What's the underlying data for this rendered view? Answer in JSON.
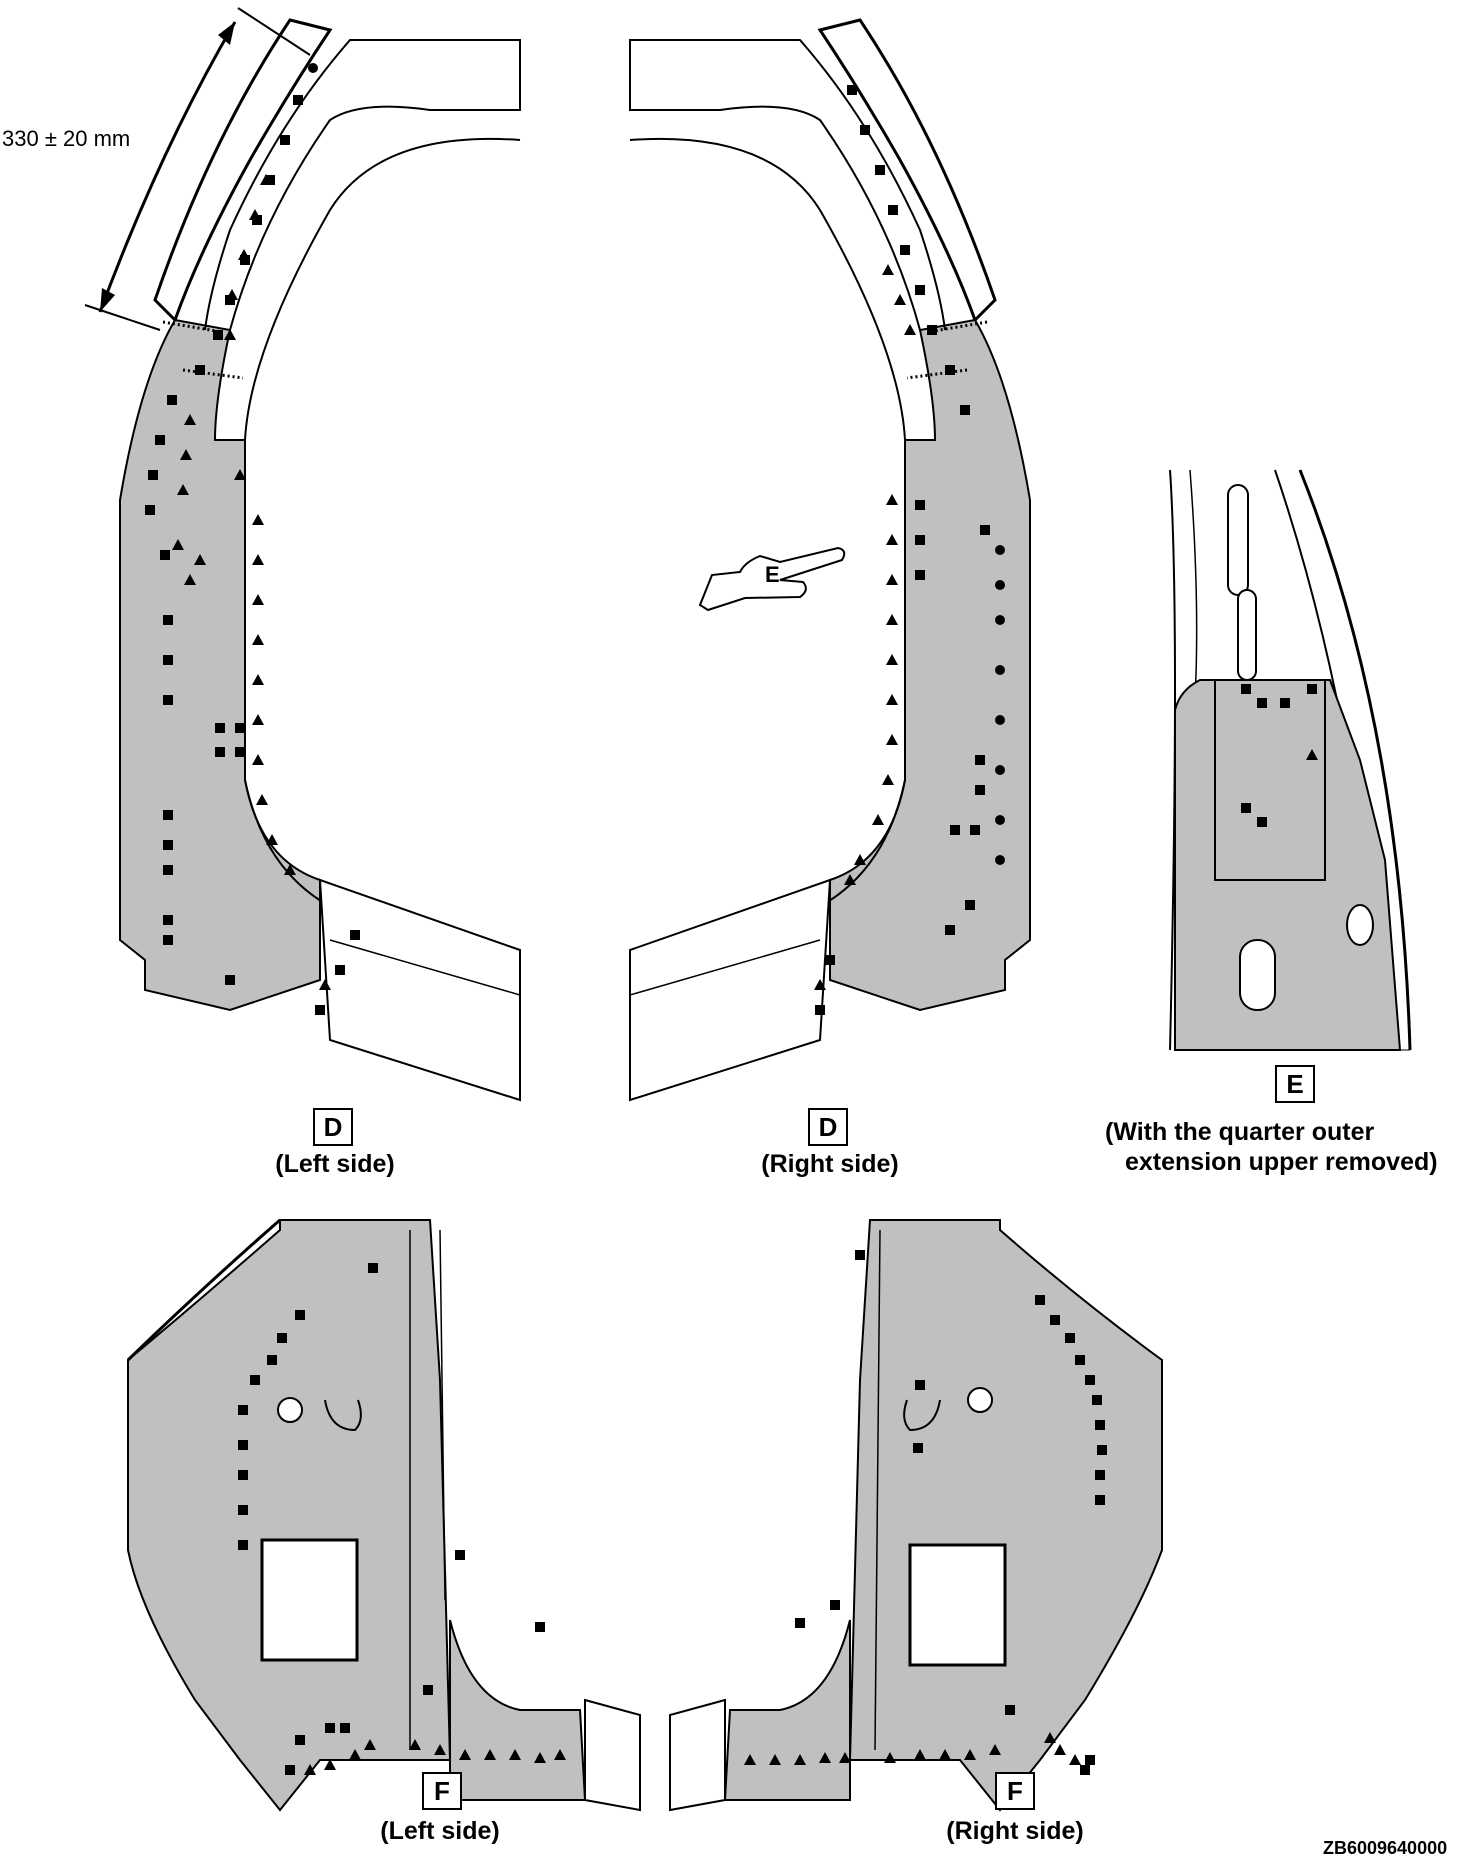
{
  "dimension_label": "330 ± 20 mm",
  "views": {
    "d_left": {
      "letter": "D",
      "caption": "(Left side)"
    },
    "d_right": {
      "letter": "D",
      "caption": "(Right side)"
    },
    "e_detail": {
      "letter": "E",
      "caption_line1": "(With the quarter outer",
      "caption_line2": "extension upper removed)"
    },
    "f_left": {
      "letter": "F",
      "caption": "(Left side)"
    },
    "f_right": {
      "letter": "F",
      "caption": "(Right side)"
    }
  },
  "pointer_hand_letter": "E",
  "figure_code": "ZB6009640000",
  "colors": {
    "panel_fill": "#c0c0c0",
    "line": "#000000",
    "background": "#ffffff"
  },
  "marker_types": [
    "square",
    "triangle",
    "circle"
  ]
}
